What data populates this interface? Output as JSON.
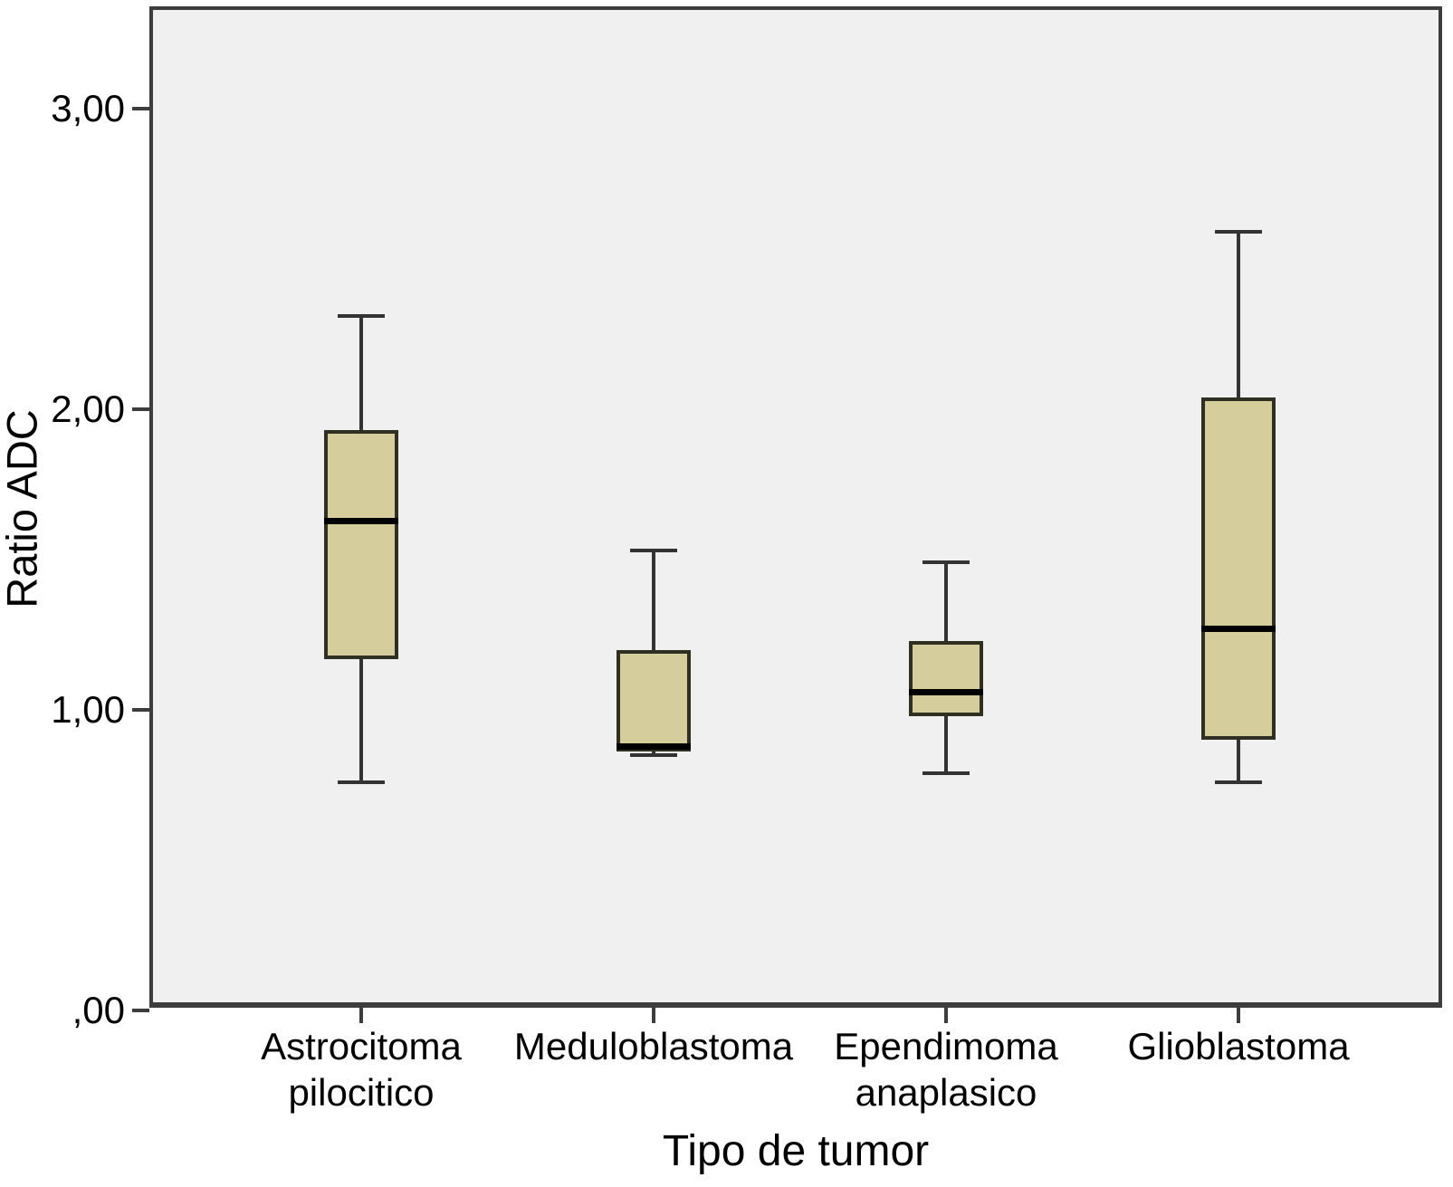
{
  "chart_data": {
    "type": "boxplot",
    "title": "",
    "xlabel": "Tipo de tumor",
    "ylabel": "Ratio ADC",
    "ylim": [
      0,
      3.33
    ],
    "grid": false,
    "legend": "none",
    "yticks": [
      {
        "value": 0,
        "label": ",00"
      },
      {
        "value": 1,
        "label": "1,00"
      },
      {
        "value": 2,
        "label": "2,00"
      },
      {
        "value": 3,
        "label": "3,00"
      }
    ],
    "categories": [
      {
        "name": "Astrocitoma pilocitico",
        "lines": [
          "Astrocitoma",
          "pilocitico"
        ]
      },
      {
        "name": "Meduloblastoma",
        "lines": [
          "Meduloblastoma"
        ]
      },
      {
        "name": "Ependimoma anaplasico",
        "lines": [
          "Ependimoma",
          "anaplasico"
        ]
      },
      {
        "name": "Glioblastoma",
        "lines": [
          "Glioblastoma"
        ]
      }
    ],
    "series": [
      {
        "category": "Astrocitoma pilocitico",
        "whisker_low": 0.76,
        "q1": 1.17,
        "median": 1.63,
        "q3": 1.93,
        "whisker_high": 2.31
      },
      {
        "category": "Meduloblastoma",
        "whisker_low": 0.85,
        "q1": 0.86,
        "median": 0.88,
        "q3": 1.2,
        "whisker_high": 1.53
      },
      {
        "category": "Ependimoma anaplasico",
        "whisker_low": 0.79,
        "q1": 0.98,
        "median": 1.06,
        "q3": 1.23,
        "whisker_high": 1.49
      },
      {
        "category": "Glioblastoma",
        "whisker_low": 0.76,
        "q1": 0.9,
        "median": 1.27,
        "q3": 2.04,
        "whisker_high": 2.59
      }
    ],
    "colors": {
      "box_fill": "#d5cd9b",
      "box_border": "#2f2f22",
      "median": "#000000",
      "whisker": "#333333",
      "frame": "#3d3d3d",
      "plot_bg": "#f0f0f0",
      "text": "#000000"
    }
  }
}
